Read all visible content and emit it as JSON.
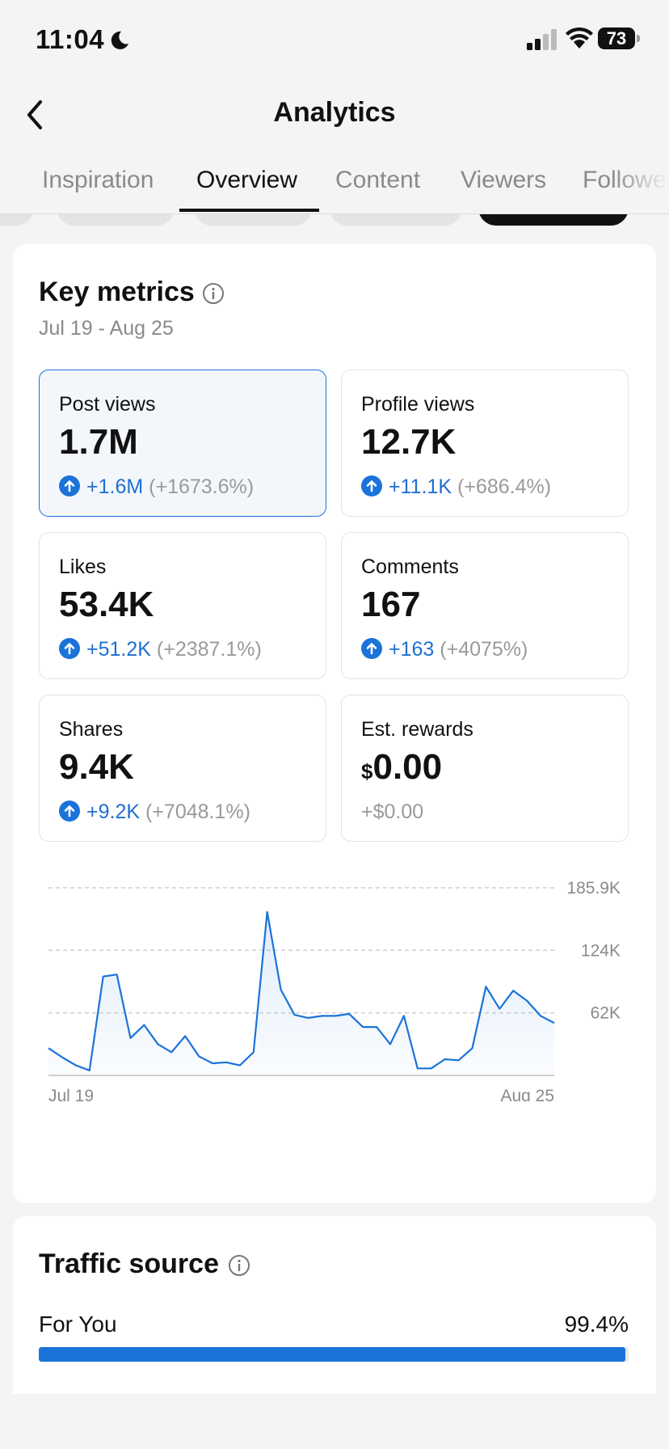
{
  "status_bar": {
    "time": "11:04",
    "battery": "73"
  },
  "header": {
    "title": "Analytics"
  },
  "tabs": [
    {
      "label": "Inspiration",
      "active": false
    },
    {
      "label": "Overview",
      "active": true
    },
    {
      "label": "Content",
      "active": false
    },
    {
      "label": "Viewers",
      "active": false
    },
    {
      "label": "Followers",
      "active": false
    }
  ],
  "key_metrics": {
    "title": "Key metrics",
    "date_range": "Jul 19 - Aug 25",
    "cards": [
      {
        "label": "Post views",
        "value": "1.7M",
        "change": "+1.6M",
        "pct": "(+1673.6%)",
        "selected": true
      },
      {
        "label": "Profile views",
        "value": "12.7K",
        "change": "+11.1K",
        "pct": "(+686.4%)"
      },
      {
        "label": "Likes",
        "value": "53.4K",
        "change": "+51.2K",
        "pct": "(+2387.1%)"
      },
      {
        "label": "Comments",
        "value": "167",
        "change": "+163",
        "pct": "(+4075%)"
      },
      {
        "label": "Shares",
        "value": "9.4K",
        "change": "+9.2K",
        "pct": "(+7048.1%)"
      },
      {
        "label": "Est. rewards",
        "currency": "$",
        "value": "0.00",
        "change": "+$0.00"
      }
    ]
  },
  "chart_data": {
    "type": "area",
    "series_color": "#1a73d9",
    "y_ticks": [
      "185.9K",
      "124K",
      "62K"
    ],
    "y_tick_values": [
      185900,
      124000,
      62000
    ],
    "ylim": [
      0,
      185900
    ],
    "x_start_label": "Jul 19",
    "x_end_label": "Aug 25",
    "values": [
      27000,
      18000,
      10000,
      5000,
      98000,
      100000,
      37000,
      50000,
      31000,
      23000,
      39000,
      19000,
      12000,
      13000,
      10000,
      23000,
      162000,
      85000,
      60000,
      57000,
      59000,
      59000,
      61000,
      48000,
      48000,
      31000,
      59000,
      7000,
      7000,
      16000,
      15000,
      27000,
      88000,
      66000,
      84000,
      74000,
      59000,
      52000
    ]
  },
  "traffic_source": {
    "title": "Traffic source",
    "items": [
      {
        "label": "For You",
        "value": "99.4%",
        "fraction": 0.994
      }
    ]
  }
}
